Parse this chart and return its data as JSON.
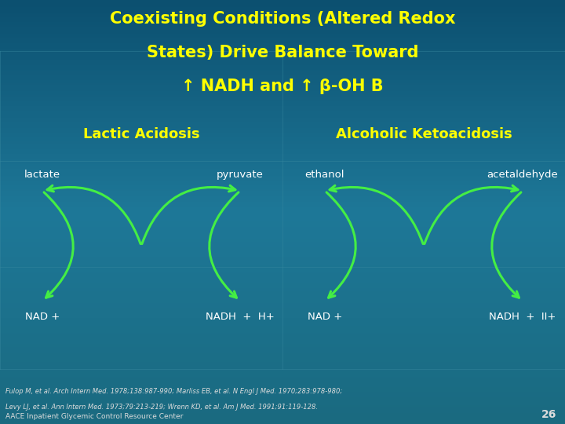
{
  "title_line1": "Coexisting Conditions (Altered Redox",
  "title_line2": "States) Drive Balance Toward",
  "title_line3": "↑ NADH and ↑ β-OH B",
  "title_color": "#FFFF00",
  "bg_color": "#1a6a80",
  "section_left_title": "Lactic Acidosis",
  "section_right_title": "Alcoholic Ketoacidosis",
  "section_title_color": "#FFFF00",
  "left_top_left": "lactate",
  "left_top_right": "pyruvate",
  "left_bot_left": "NAD +",
  "left_bot_right": "NADH  +  H+",
  "right_top_left": "ethanol",
  "right_top_right": "acetaldehyde",
  "right_bot_left": "NAD +",
  "right_bot_right": "NADH  +  II+",
  "label_color": "#FFFFFF",
  "arrow_color": "#44EE44",
  "footnote_line1": "Fulop M, et al. Arch Intern Med. 1978;138:987-990; Marliss EB, et al. N Engl J Med. 1970;283:978-980;",
  "footnote_line2": "Levy LJ, et al. Ann Intern Med. 1973;79:213-219; Wrenn KD, et al. Am J Med. 1991;91:119-128.",
  "footnote_color": "#DDDDDD",
  "page_number": "26",
  "bottom_label": "AACE Inpatient Glycemic Control Resource Center"
}
